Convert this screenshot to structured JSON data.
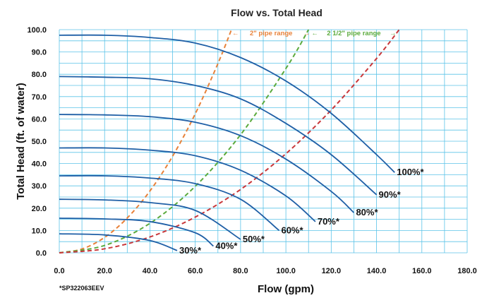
{
  "chart_data": {
    "type": "line",
    "title": "Flow vs. Total Head",
    "xlabel": "Flow (gpm)",
    "ylabel": "Total Head (ft. of water)",
    "xlim": [
      0,
      180
    ],
    "ylim": [
      0,
      100
    ],
    "xticks": [
      "0.0",
      "20.0",
      "40.0",
      "60.0",
      "80.0",
      "100.0",
      "120.0",
      "140.0",
      "160.0",
      "180.0"
    ],
    "yticks": [
      "0.0",
      "10.0",
      "20.0",
      "30.0",
      "40.0",
      "50.0",
      "60.0",
      "70.0",
      "80.0",
      "90.0",
      "100.0"
    ],
    "grid": true,
    "pump_curve_color": "#1f5fa6",
    "series": [
      {
        "name": "100%*",
        "x": [
          0,
          20,
          40,
          60,
          80,
          100,
          120,
          140,
          148
        ],
        "y": [
          97.5,
          97.5,
          96.5,
          94,
          87.5,
          77,
          62.5,
          44,
          36
        ]
      },
      {
        "name": "90%*",
        "x": [
          0,
          20,
          40,
          60,
          80,
          100,
          120,
          140
        ],
        "y": [
          79,
          78.7,
          78,
          75,
          69,
          58,
          44,
          26
        ]
      },
      {
        "name": "80%*",
        "x": [
          0,
          20,
          40,
          60,
          80,
          100,
          120,
          130
        ],
        "y": [
          62,
          61.8,
          61,
          58.5,
          52.5,
          42,
          27.5,
          18
        ]
      },
      {
        "name": "70%*",
        "x": [
          0,
          20,
          40,
          60,
          80,
          100,
          113
        ],
        "y": [
          47,
          47,
          46,
          43.5,
          37,
          25.5,
          14
        ]
      },
      {
        "name": "60%*",
        "x": [
          0,
          20,
          40,
          60,
          80,
          97
        ],
        "y": [
          34.5,
          34.5,
          33.5,
          31,
          24,
          10
        ]
      },
      {
        "name": "50%*",
        "x": [
          0,
          20,
          40,
          60,
          80
        ],
        "y": [
          24,
          23.7,
          22.5,
          19,
          6
        ]
      },
      {
        "name": "40%*",
        "x": [
          0,
          20,
          40,
          60,
          68
        ],
        "y": [
          15.5,
          15.2,
          14,
          9,
          3
        ]
      },
      {
        "name": "30%*",
        "x": [
          0,
          20,
          40,
          52
        ],
        "y": [
          8.5,
          8,
          5.5,
          1
        ]
      }
    ],
    "system_curves": [
      {
        "label": "2\" pipe range",
        "color": "#e8823a",
        "x": [
          0,
          10,
          20,
          30,
          40,
          50,
          60,
          70,
          76
        ],
        "y": [
          0,
          1.7,
          6.9,
          15.6,
          27.7,
          43.3,
          62.3,
          84.8,
          100
        ]
      },
      {
        "label": "2 1/2\" pipe range",
        "color": "#5aaa3c",
        "x": [
          0,
          20,
          40,
          60,
          80,
          100,
          110
        ],
        "y": [
          0,
          3.3,
          13.2,
          29.8,
          52.9,
          82.6,
          100
        ]
      },
      {
        "label": "",
        "color": "#c8373a",
        "x": [
          0,
          20,
          40,
          60,
          80,
          100,
          120,
          140,
          150
        ],
        "y": [
          0,
          1.8,
          7.1,
          16,
          28.4,
          44.4,
          64,
          87.1,
          100
        ]
      }
    ]
  },
  "footnote": "*SP322063EEV"
}
